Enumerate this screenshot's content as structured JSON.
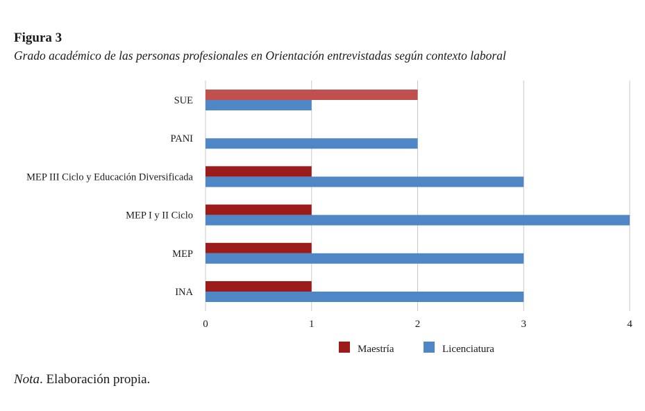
{
  "figure": {
    "label": "Figura 3",
    "title": "Grado académico de las personas profesionales en Orientación entrevistadas según contexto laboral"
  },
  "note": {
    "prefix": "Nota",
    "text": ". Elaboración propia."
  },
  "chart_data": {
    "type": "bar",
    "orientation": "horizontal",
    "categories": [
      "SUE",
      "PANI",
      "MEP III Ciclo y Educación Diversificada",
      "MEP I y II Ciclo",
      "MEP",
      "INA"
    ],
    "series": [
      {
        "name": "Maestría",
        "color": "#9b1b1b",
        "values": [
          2,
          0,
          1,
          1,
          1,
          1
        ]
      },
      {
        "name": "Licenciatura",
        "color": "#4f86c6",
        "values": [
          1,
          2,
          3,
          4,
          3,
          3
        ]
      }
    ],
    "sue_maestria_color": "#c0504d",
    "xlim": [
      0,
      4
    ],
    "xticks": [
      "0",
      "1",
      "2",
      "3",
      "4"
    ],
    "grid": true,
    "legend": "bottom"
  }
}
